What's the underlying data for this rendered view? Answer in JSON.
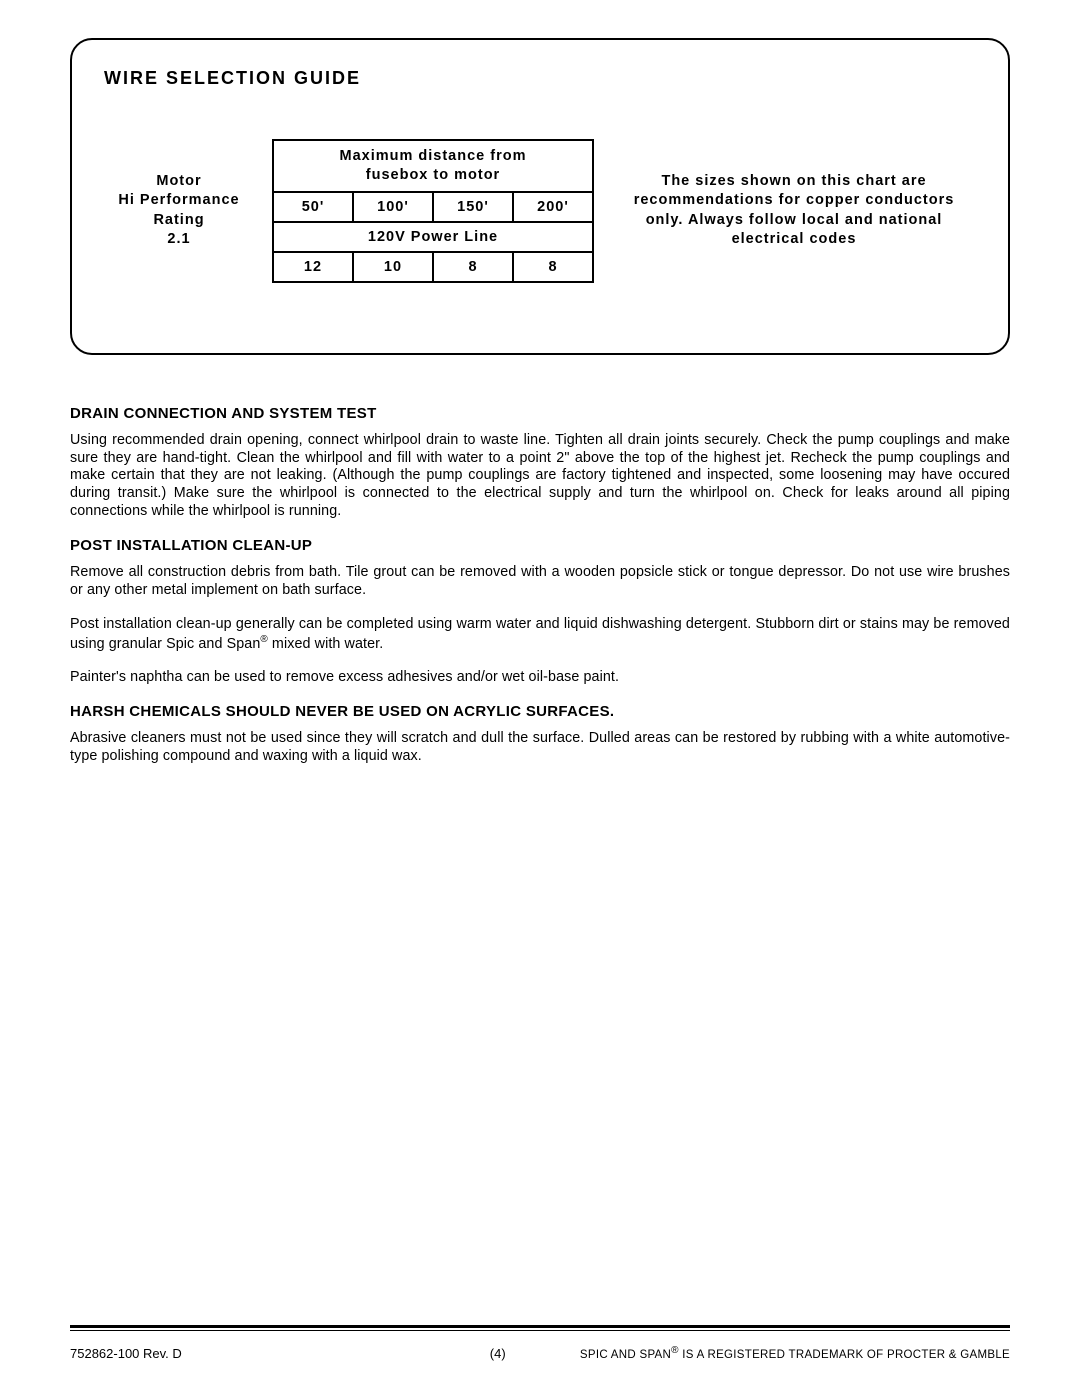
{
  "guide": {
    "title": "WIRE SELECTION GUIDE",
    "motor_label_l1": "Motor",
    "motor_label_l2": "Hi Performance",
    "motor_label_l3": "Rating",
    "motor_label_l4": "2.1",
    "table": {
      "header_l1": "Maximum distance from",
      "header_l2": "fusebox to motor",
      "distances": [
        "50'",
        "100'",
        "150'",
        "200'"
      ],
      "power_line": "120V Power Line",
      "gauges": [
        "12",
        "10",
        "8",
        "8"
      ]
    },
    "note": "The sizes shown on this chart are recommendations for copper conductors only.  Always follow local and national electrical codes"
  },
  "sections": {
    "drain_title": "DRAIN CONNECTION AND SYSTEM TEST",
    "drain_body": "Using recommended drain opening, connect whirlpool drain to waste line.  Tighten all drain joints securely.  Check the pump couplings and make sure they are hand-tight.  Clean the whirlpool and fill with water to a point 2\" above the top of the highest jet.  Recheck the pump couplings and make certain that they are not leaking.  (Although the pump couplings are factory tightened and inspected, some loosening may have occured during transit.)  Make sure the whirlpool is connected to the electrical supply and turn the whirlpool on.  Check for leaks around all piping connections while the whirlpool is running.",
    "post_title": "POST INSTALLATION CLEAN-UP",
    "post_p1": "Remove all construction debris from bath.  Tile grout can be removed with a wooden popsicle stick or tongue depressor.  Do not use wire brushes or any other metal implement on bath surface.",
    "post_p2a": "Post installation clean-up generally can be completed using warm water and liquid dishwashing detergent.  Stubborn dirt or stains may be removed using granular Spic and Span",
    "post_p2b": " mixed with water.",
    "post_p3": "Painter's naphtha can be used to remove excess adhesives and/or wet oil-base paint.",
    "harsh_title": "HARSH CHEMICALS SHOULD NEVER BE USED ON ACRYLIC SURFACES.",
    "harsh_body": "Abrasive cleaners must not be used since they will scratch and dull the surface.  Dulled areas can be restored by rubbing with a white automotive-type polishing compound and waxing with a liquid wax."
  },
  "footer": {
    "left": "752862-100 Rev. D",
    "center": "(4)",
    "right_a": "SPIC AND SPAN",
    "right_b": " IS A REGISTERED TRADEMARK OF PROCTER & GAMBLE",
    "reg": "®"
  }
}
